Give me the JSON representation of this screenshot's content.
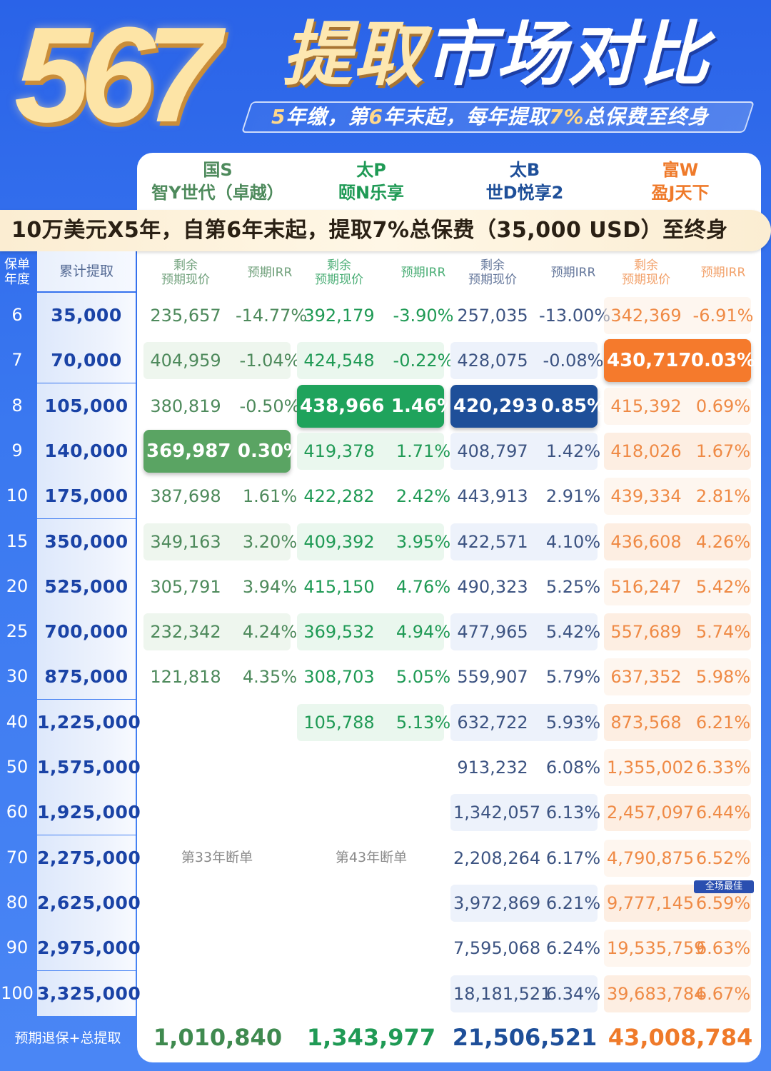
{
  "hero": {
    "number": "567",
    "title_gold": "提取",
    "title_white": "市场对比",
    "subtitle_parts": [
      "5",
      "年缴，第",
      "6",
      "年末起，每年提取",
      "7%",
      "总保费至终身"
    ]
  },
  "products": [
    {
      "company": "国S",
      "name": "智Y世代（卓越）",
      "color": "#4e8a5c"
    },
    {
      "company": "太P",
      "name": "颐N乐享",
      "color": "#1f9a55"
    },
    {
      "company": "太B",
      "name": "世D悦享2",
      "color": "#1e4f99"
    },
    {
      "company": "富W",
      "name": "盈J天下",
      "color": "#ef7a2a"
    }
  ],
  "banner": "10万美元X5年，自第6年末起，提取7%总保费（35,000 USD）至终身",
  "headers": {
    "year": "保单\n年度",
    "year_l1": "保单",
    "year_l2": "年度",
    "cumulative": "累计提取",
    "remain_l1": "剩余",
    "remain_l2": "预期现价",
    "irr": "预期IRR"
  },
  "rows": [
    {
      "year": "6",
      "cum": "35,000",
      "cells": [
        [
          "235,657",
          "-14.77%"
        ],
        [
          "392,179",
          "-3.90%"
        ],
        [
          "257,035",
          "-13.00%"
        ],
        [
          "342,369",
          "-6.91%"
        ]
      ]
    },
    {
      "year": "7",
      "cum": "70,000",
      "cells": [
        [
          "404,959",
          "-1.04%"
        ],
        [
          "424,548",
          "-0.22%"
        ],
        [
          "428,075",
          "-0.08%"
        ],
        [
          "430,717",
          "0.03%"
        ]
      ]
    },
    {
      "year": "8",
      "cum": "105,000",
      "cells": [
        [
          "380,819",
          "-0.50%"
        ],
        [
          "438,966",
          "1.46%"
        ],
        [
          "420,293",
          "0.85%"
        ],
        [
          "415,392",
          "0.69%"
        ]
      ]
    },
    {
      "year": "9",
      "cum": "140,000",
      "cells": [
        [
          "369,987",
          "0.30%"
        ],
        [
          "419,378",
          "1.71%"
        ],
        [
          "408,797",
          "1.42%"
        ],
        [
          "418,026",
          "1.67%"
        ]
      ]
    },
    {
      "year": "10",
      "cum": "175,000",
      "cells": [
        [
          "387,698",
          "1.61%"
        ],
        [
          "422,282",
          "2.42%"
        ],
        [
          "443,913",
          "2.91%"
        ],
        [
          "439,334",
          "2.81%"
        ]
      ]
    },
    {
      "year": "15",
      "cum": "350,000",
      "cells": [
        [
          "349,163",
          "3.20%"
        ],
        [
          "409,392",
          "3.95%"
        ],
        [
          "422,571",
          "4.10%"
        ],
        [
          "436,608",
          "4.26%"
        ]
      ]
    },
    {
      "year": "20",
      "cum": "525,000",
      "cells": [
        [
          "305,791",
          "3.94%"
        ],
        [
          "415,150",
          "4.76%"
        ],
        [
          "490,323",
          "5.25%"
        ],
        [
          "516,247",
          "5.42%"
        ]
      ]
    },
    {
      "year": "25",
      "cum": "700,000",
      "cells": [
        [
          "232,342",
          "4.24%"
        ],
        [
          "369,532",
          "4.94%"
        ],
        [
          "477,965",
          "5.42%"
        ],
        [
          "557,689",
          "5.74%"
        ]
      ]
    },
    {
      "year": "30",
      "cum": "875,000",
      "cells": [
        [
          "121,818",
          "4.35%"
        ],
        [
          "308,703",
          "5.05%"
        ],
        [
          "559,907",
          "5.79%"
        ],
        [
          "637,352",
          "5.98%"
        ]
      ]
    },
    {
      "year": "40",
      "cum": "1,225,000",
      "cells": [
        [
          "",
          ""
        ],
        [
          "105,788",
          "5.13%"
        ],
        [
          "632,722",
          "5.93%"
        ],
        [
          "873,568",
          "6.21%"
        ]
      ]
    },
    {
      "year": "50",
      "cum": "1,575,000",
      "cells": [
        [
          "",
          ""
        ],
        [
          "",
          ""
        ],
        [
          "913,232",
          "6.08%"
        ],
        [
          "1,355,002",
          "6.33%"
        ]
      ]
    },
    {
      "year": "60",
      "cum": "1,925,000",
      "cells": [
        [
          "",
          ""
        ],
        [
          "",
          ""
        ],
        [
          "1,342,057",
          "6.13%"
        ],
        [
          "2,457,097",
          "6.44%"
        ]
      ]
    },
    {
      "year": "70",
      "cum": "2,275,000",
      "cells": [
        [
          "",
          ""
        ],
        [
          "",
          ""
        ],
        [
          "2,208,264",
          "6.17%"
        ],
        [
          "4,790,875",
          "6.52%"
        ]
      ]
    },
    {
      "year": "80",
      "cum": "2,625,000",
      "cells": [
        [
          "",
          ""
        ],
        [
          "",
          ""
        ],
        [
          "3,972,869",
          "6.21%"
        ],
        [
          "9,777,145",
          "6.59%"
        ]
      ]
    },
    {
      "year": "90",
      "cum": "2,975,000",
      "cells": [
        [
          "",
          ""
        ],
        [
          "",
          ""
        ],
        [
          "7,595,068",
          "6.24%"
        ],
        [
          "19,535,759",
          "6.63%"
        ]
      ]
    },
    {
      "year": "100",
      "cum": "3,325,000",
      "cells": [
        [
          "",
          ""
        ],
        [
          "",
          ""
        ],
        [
          "18,181,521",
          "6.34%"
        ],
        [
          "39,683,784",
          "6.67%"
        ]
      ]
    }
  ],
  "lapse_notes": [
    "第33年断单",
    "第43年断单"
  ],
  "best_badge": "全场最佳",
  "footer": {
    "label": "预期退保+总提取",
    "values": [
      "1,010,840",
      "1,343,977",
      "21,506,521",
      "43,008,784"
    ]
  },
  "highlights": [
    {
      "row": 1,
      "col": 3,
      "color": "#f57a2c"
    },
    {
      "row": 2,
      "col": 1,
      "color": "#1fa35c"
    },
    {
      "row": 2,
      "col": 2,
      "color": "#1e4f99"
    },
    {
      "row": 3,
      "col": 0,
      "color": "#5aa463"
    }
  ]
}
